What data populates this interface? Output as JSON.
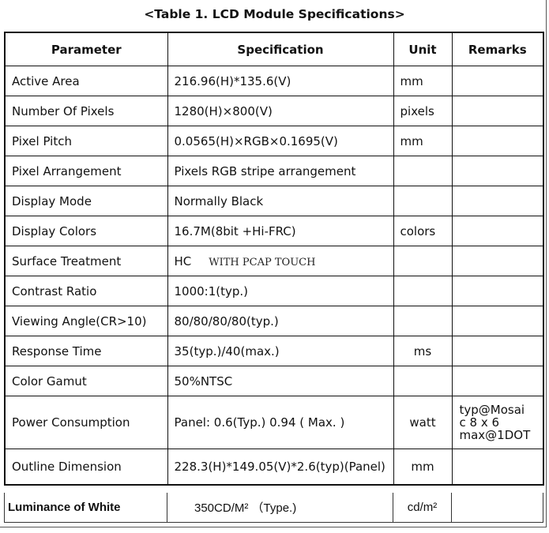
{
  "title": "<Table 1. LCD Module Specifications>",
  "headers": [
    "Parameter",
    "Specification",
    "Unit",
    "Remarks"
  ],
  "rows": [
    {
      "parameter": "Active Area",
      "spec": "216.96(H)*135.6(V)",
      "unit": "mm",
      "remarks": ""
    },
    {
      "parameter": "Number Of Pixels",
      "spec": "1280(H)×800(V)",
      "unit": "pixels",
      "remarks": ""
    },
    {
      "parameter": "Pixel Pitch",
      "spec": "0.0565(H)×RGB×0.1695(V)",
      "unit": "mm",
      "remarks": ""
    },
    {
      "parameter": "Pixel Arrangement",
      "spec": "Pixels RGB stripe arrangement",
      "unit": "",
      "remarks": ""
    },
    {
      "parameter": "Display Mode",
      "spec": "Normally Black",
      "unit": "",
      "remarks": ""
    },
    {
      "parameter": "Display Colors",
      "spec": "16.7M(8bit +Hi-FRC)",
      "unit": "colors",
      "remarks": ""
    },
    {
      "parameter": "Surface Treatment",
      "spec": "HC",
      "spec_extra": "WITH PCAP TOUCH",
      "unit": "",
      "remarks": ""
    },
    {
      "parameter": "Contrast Ratio",
      "spec": "1000:1(typ.)",
      "unit": "",
      "remarks": ""
    },
    {
      "parameter": "Viewing Angle(CR>10)",
      "spec": "80/80/80/80(typ.)",
      "unit": "",
      "remarks": ""
    },
    {
      "parameter": "Response Time",
      "spec": "35(typ.)/40(max.)",
      "unit": "ms",
      "remarks": ""
    },
    {
      "parameter": "Color Gamut",
      "spec": "50%NTSC",
      "unit": "",
      "remarks": ""
    },
    {
      "parameter": "Power Consumption",
      "spec": "Panel: 0.6(Typ.)  0.94 ( Max. )",
      "unit": "watt",
      "remarks": [
        "typ@Mosai",
        "c 8 x 6",
        "max@1DOT"
      ]
    },
    {
      "parameter": "Outline Dimension",
      "spec": "228.3(H)*149.05(V)*2.6(typ)(Panel)",
      "unit": "mm",
      "remarks": ""
    }
  ],
  "last_row": {
    "parameter": "Luminance of White",
    "spec": "350CD/M²  （Type.)",
    "unit": "cd/m²",
    "remarks": ""
  }
}
